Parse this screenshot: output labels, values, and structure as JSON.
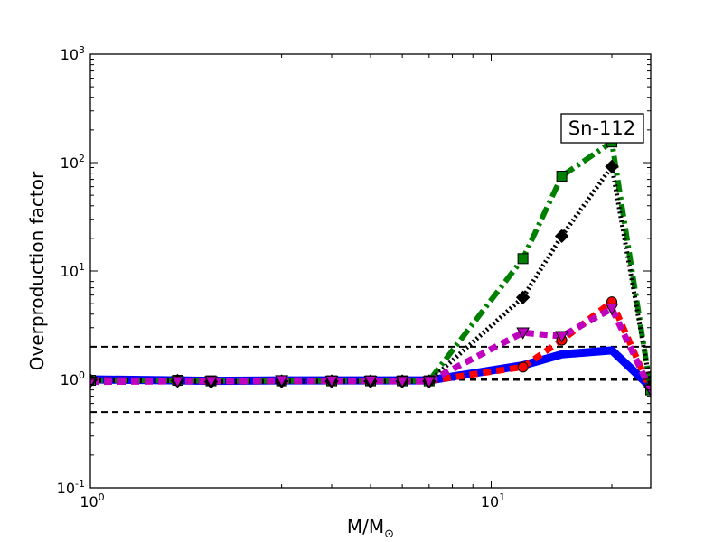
{
  "chart_data": {
    "type": "line",
    "xscale": "log",
    "yscale": "log",
    "xlim": [
      1,
      25
    ],
    "ylim": [
      0.1,
      1000
    ],
    "xticks": [
      {
        "base": "10",
        "exp": "0",
        "value": 1
      },
      {
        "base": "10",
        "exp": "1",
        "value": 10
      }
    ],
    "yticks": [
      {
        "base": "10",
        "exp": "-1",
        "value": 0.1
      },
      {
        "base": "10",
        "exp": "0",
        "value": 1
      },
      {
        "base": "10",
        "exp": "1",
        "value": 10
      },
      {
        "base": "10",
        "exp": "2",
        "value": 100
      },
      {
        "base": "10",
        "exp": "3",
        "value": 1000
      }
    ],
    "xlabel": {
      "main": "M/M",
      "sub": "⊙"
    },
    "ylabel": "Overproduction factor",
    "annotation": "Sn-112",
    "grid": false,
    "reference_lines": [
      {
        "y": 2.0,
        "color": "#000000",
        "style": "dashed"
      },
      {
        "y": 1.0,
        "color": "#000000",
        "style": "dashed"
      },
      {
        "y": 0.5,
        "color": "#000000",
        "style": "dashed"
      }
    ],
    "series": [
      {
        "color": "#0000ff",
        "style": "solid",
        "marker": "none",
        "x": [
          1,
          1.65,
          2,
          3,
          4,
          5,
          6,
          7,
          12,
          15,
          20,
          25
        ],
        "y": [
          1.0,
          0.98,
          0.97,
          0.98,
          0.98,
          0.98,
          0.98,
          0.98,
          1.35,
          1.7,
          1.85,
          0.85
        ]
      },
      {
        "color": "#ff0000",
        "style": "dashed",
        "marker": "circle",
        "x": [
          1,
          1.65,
          2,
          3,
          4,
          5,
          6,
          7,
          12,
          15,
          20,
          25
        ],
        "y": [
          0.98,
          0.97,
          0.96,
          0.97,
          0.97,
          0.97,
          0.97,
          0.97,
          1.3,
          2.3,
          5.2,
          0.8
        ]
      },
      {
        "color": "#008000",
        "style": "dashdot",
        "marker": "square",
        "x": [
          1,
          1.65,
          2,
          3,
          4,
          5,
          6,
          7,
          12,
          15,
          20,
          25
        ],
        "y": [
          0.98,
          0.98,
          0.97,
          0.97,
          0.97,
          0.97,
          0.97,
          0.97,
          13,
          75,
          155,
          0.8
        ]
      },
      {
        "color": "#000000",
        "style": "dotted",
        "marker": "diamond",
        "x": [
          1,
          1.65,
          2,
          3,
          4,
          5,
          6,
          7,
          12,
          15,
          20,
          25
        ],
        "y": [
          0.98,
          0.97,
          0.95,
          0.96,
          0.96,
          0.96,
          0.96,
          0.96,
          5.7,
          21,
          92,
          0.85
        ]
      },
      {
        "color": "#bf00bf",
        "style": "dashed",
        "marker": "triangle-down",
        "x": [
          1,
          1.65,
          2,
          3,
          4,
          5,
          6,
          7,
          12,
          15,
          20,
          25
        ],
        "y": [
          0.95,
          0.96,
          0.96,
          0.98,
          0.97,
          0.97,
          0.96,
          0.96,
          2.7,
          2.5,
          4.5,
          0.8
        ]
      }
    ]
  }
}
